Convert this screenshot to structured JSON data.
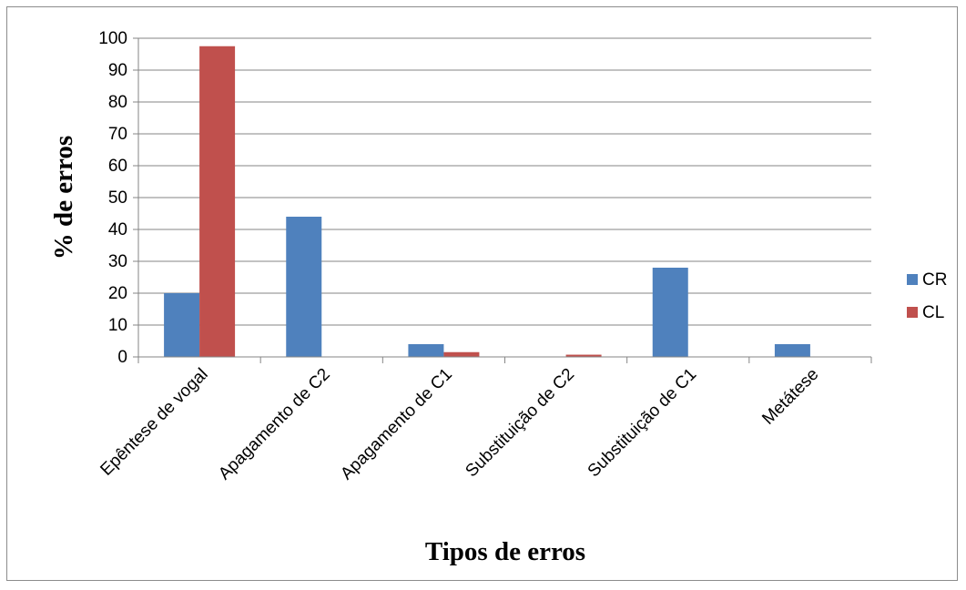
{
  "chart_data": {
    "type": "bar",
    "title": "",
    "xlabel": "Tipos de erros",
    "ylabel": "% de erros",
    "ylim": [
      0,
      100
    ],
    "yticks": [
      0,
      10,
      20,
      30,
      40,
      50,
      60,
      70,
      80,
      90,
      100
    ],
    "grid": true,
    "legend_position": "right",
    "categories": [
      "Epêntese de vogal",
      "Apagamento de C2",
      "Apagamento de C1",
      "Substituição de C2",
      "Substituição de C1",
      "Metátese"
    ],
    "series": [
      {
        "name": "CR",
        "color": "#4F81BD",
        "values": [
          20,
          44,
          4,
          0,
          28,
          4
        ]
      },
      {
        "name": "CL",
        "color": "#C0504D",
        "values": [
          97.5,
          0,
          1.5,
          0.7,
          0,
          0
        ]
      }
    ]
  }
}
